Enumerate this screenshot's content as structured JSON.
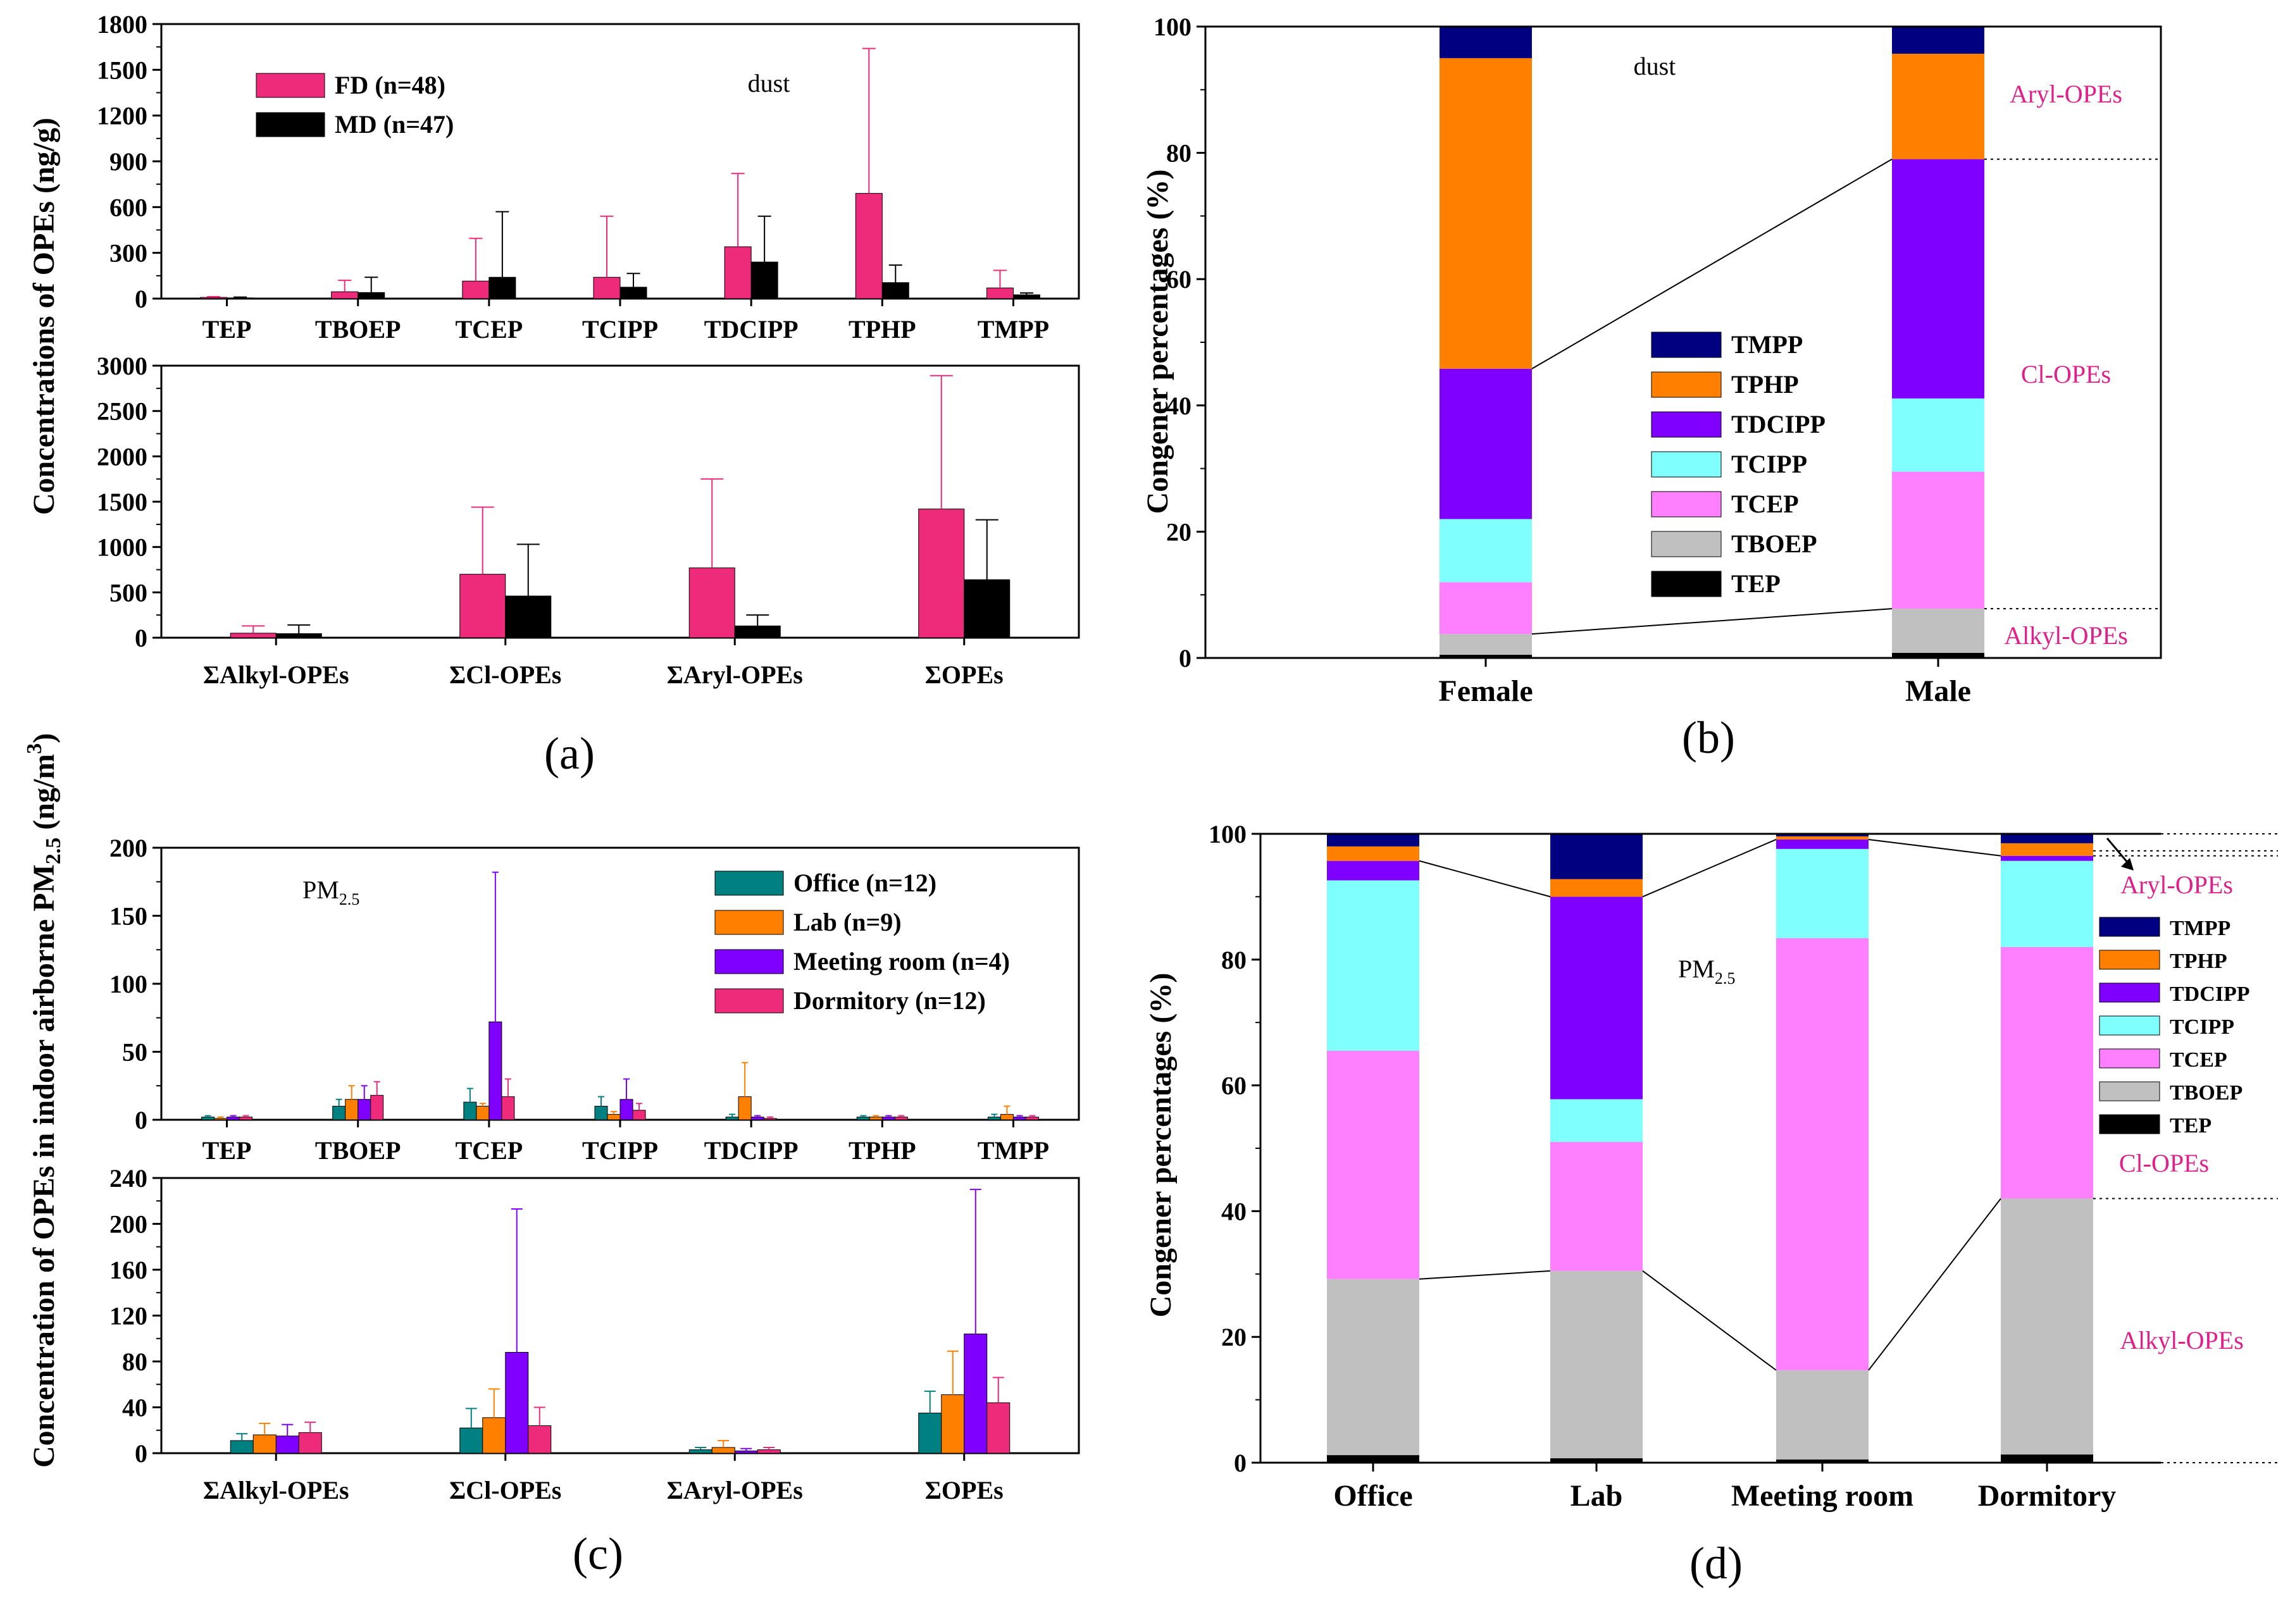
{
  "colors": {
    "FD": "#ee2a7b",
    "MD": "#000000",
    "Office": "#008080",
    "Lab": "#ff8000",
    "Meeting room": "#8000ff",
    "Dormitory": "#ee2a7b",
    "TEP": "#000000",
    "TBOEP": "#c0c0c0",
    "TCEP": "#ff80ff",
    "TCIPP": "#80ffff",
    "TDCIPP": "#8000ff",
    "TPHP": "#ff8000",
    "TMPP": "#000080",
    "group": "#e0208a"
  },
  "panel_labels": {
    "a": "(a)",
    "b": "(b)",
    "c": "(c)",
    "d": "(d)"
  },
  "chart_data": [
    {
      "id": "a_top",
      "type": "bar",
      "panel": "(a)",
      "ylabel": "Concentrations of OPEs (ng/g)",
      "annotation": "dust",
      "ylim": [
        0,
        1800
      ],
      "yticks": [
        0,
        300,
        600,
        900,
        1200,
        1500,
        1800
      ],
      "categories": [
        "TEP",
        "TBOEP",
        "TCEP",
        "TCIPP",
        "TDCIPP",
        "TPHP",
        "TMPP"
      ],
      "series": [
        {
          "name": "FD",
          "legend": "FD  (n=48)",
          "values": [
            8,
            45,
            115,
            140,
            340,
            690,
            70
          ],
          "err": [
            5,
            75,
            280,
            400,
            480,
            950,
            115
          ]
        },
        {
          "name": "MD",
          "legend": "MD  (n=47)",
          "values": [
            5,
            40,
            140,
            75,
            240,
            105,
            25
          ],
          "err": [
            5,
            100,
            430,
            90,
            300,
            115,
            12
          ]
        }
      ]
    },
    {
      "id": "a_bottom",
      "type": "bar",
      "panel": "(a)",
      "ylim": [
        0,
        3000
      ],
      "yticks": [
        0,
        500,
        1000,
        1500,
        2000,
        2500,
        3000
      ],
      "categories": [
        "ΣAlkyl-OPEs",
        "ΣCl-OPEs",
        "ΣAryl-OPEs",
        "ΣOPEs"
      ],
      "series": [
        {
          "name": "FD",
          "values": [
            50,
            700,
            770,
            1420
          ],
          "err": [
            80,
            740,
            980,
            1470
          ]
        },
        {
          "name": "MD",
          "values": [
            45,
            460,
            130,
            640
          ],
          "err": [
            95,
            570,
            120,
            660
          ]
        }
      ]
    },
    {
      "id": "b",
      "type": "stacked_bar",
      "panel": "(b)",
      "ylabel": "Congener percentages (%)",
      "annotation": "dust",
      "ylim": [
        0,
        100
      ],
      "yticks": [
        0,
        20,
        40,
        60,
        80,
        100
      ],
      "categories": [
        "Female",
        "Male"
      ],
      "series": [
        {
          "name": "TEP",
          "values": [
            0.5,
            0.8
          ]
        },
        {
          "name": "TBOEP",
          "values": [
            3.3,
            7.0
          ]
        },
        {
          "name": "TCEP",
          "values": [
            8.2,
            21.7
          ]
        },
        {
          "name": "TCIPP",
          "values": [
            10.0,
            11.6
          ]
        },
        {
          "name": "TDCIPP",
          "values": [
            23.8,
            37.9
          ]
        },
        {
          "name": "TPHP",
          "values": [
            49.2,
            16.7
          ]
        },
        {
          "name": "TMPP",
          "values": [
            5.0,
            4.3
          ]
        }
      ],
      "legend": [
        "TMPP",
        "TPHP",
        "TDCIPP",
        "TCIPP",
        "TCEP",
        "TBOEP",
        "TEP"
      ],
      "group_labels": [
        "Aryl-OPEs",
        "Cl-OPEs",
        "Alkyl-OPEs"
      ]
    },
    {
      "id": "c_top",
      "type": "bar",
      "panel": "(c)",
      "ylabel": "Concentration of OPEs in indoor airborne PM2.5 (ng/m3)",
      "annotation": "PM2.5",
      "ylim": [
        0,
        200
      ],
      "yticks": [
        0,
        50,
        100,
        150,
        200
      ],
      "categories": [
        "TEP",
        "TBOEP",
        "TCEP",
        "TCIPP",
        "TDCIPP",
        "TPHP",
        "TMPP"
      ],
      "series": [
        {
          "name": "Office",
          "legend": "Office (n=12)",
          "values": [
            2,
            10,
            13,
            10,
            2,
            2,
            2
          ],
          "err": [
            1,
            5,
            10,
            7,
            2,
            1,
            2
          ]
        },
        {
          "name": "Lab",
          "legend": "Lab (n=9)",
          "values": [
            1,
            15,
            10,
            4,
            17,
            2,
            4
          ],
          "err": [
            1,
            10,
            2,
            2,
            25,
            1,
            6
          ]
        },
        {
          "name": "Meeting room",
          "legend": "Meeting room (n=4)",
          "values": [
            2,
            15,
            72,
            15,
            2,
            2,
            2
          ],
          "err": [
            1,
            10,
            110,
            15,
            1,
            1,
            1
          ]
        },
        {
          "name": "Dormitory",
          "legend": "Dormitory (n=12)",
          "values": [
            2,
            18,
            17,
            7,
            1,
            2,
            2
          ],
          "err": [
            1,
            10,
            13,
            5,
            1,
            1,
            1
          ]
        }
      ]
    },
    {
      "id": "c_bottom",
      "type": "bar",
      "panel": "(c)",
      "ylim": [
        0,
        240
      ],
      "yticks": [
        0,
        40,
        80,
        120,
        160,
        200,
        240
      ],
      "categories": [
        "ΣAlkyl-OPEs",
        "ΣCl-OPEs",
        "ΣAryl-OPEs",
        "ΣOPEs"
      ],
      "series": [
        {
          "name": "Office",
          "values": [
            11,
            22,
            3,
            35
          ],
          "err": [
            6,
            17,
            2,
            19
          ]
        },
        {
          "name": "Lab",
          "values": [
            16,
            31,
            5,
            51
          ],
          "err": [
            10,
            25,
            6,
            38
          ]
        },
        {
          "name": "Meeting room",
          "values": [
            15,
            88,
            2,
            104
          ],
          "err": [
            10,
            125,
            2,
            126
          ]
        },
        {
          "name": "Dormitory",
          "values": [
            18,
            24,
            3,
            44
          ],
          "err": [
            9,
            16,
            2,
            22
          ]
        }
      ]
    },
    {
      "id": "d",
      "type": "stacked_bar",
      "panel": "(d)",
      "ylabel": "Congener percentages (%)",
      "annotation": "PM2.5",
      "ylim": [
        0,
        100
      ],
      "yticks": [
        0,
        20,
        40,
        60,
        80,
        100
      ],
      "categories": [
        "Office",
        "Lab",
        "Meeting room",
        "Dormitory"
      ],
      "series": [
        {
          "name": "TEP",
          "values": [
            1.2,
            0.7,
            0.5,
            1.3
          ]
        },
        {
          "name": "TBOEP",
          "values": [
            28.0,
            29.8,
            14.2,
            40.7
          ]
        },
        {
          "name": "TCEP",
          "values": [
            36.3,
            20.5,
            68.7,
            40.0
          ]
        },
        {
          "name": "TCIPP",
          "values": [
            27.1,
            6.8,
            14.2,
            13.7
          ]
        },
        {
          "name": "TDCIPP",
          "values": [
            3.1,
            32.2,
            1.5,
            0.8
          ]
        },
        {
          "name": "TPHP",
          "values": [
            2.3,
            2.8,
            0.5,
            2.0
          ]
        },
        {
          "name": "TMPP",
          "values": [
            2.0,
            7.2,
            0.4,
            1.5
          ]
        }
      ],
      "legend": [
        "TMPP",
        "TPHP",
        "TDCIPP",
        "TCIPP",
        "TCEP",
        "TBOEP",
        "TEP"
      ],
      "group_labels": [
        "Aryl-OPEs",
        "Cl-OPEs",
        "Alkyl-OPEs"
      ]
    }
  ]
}
